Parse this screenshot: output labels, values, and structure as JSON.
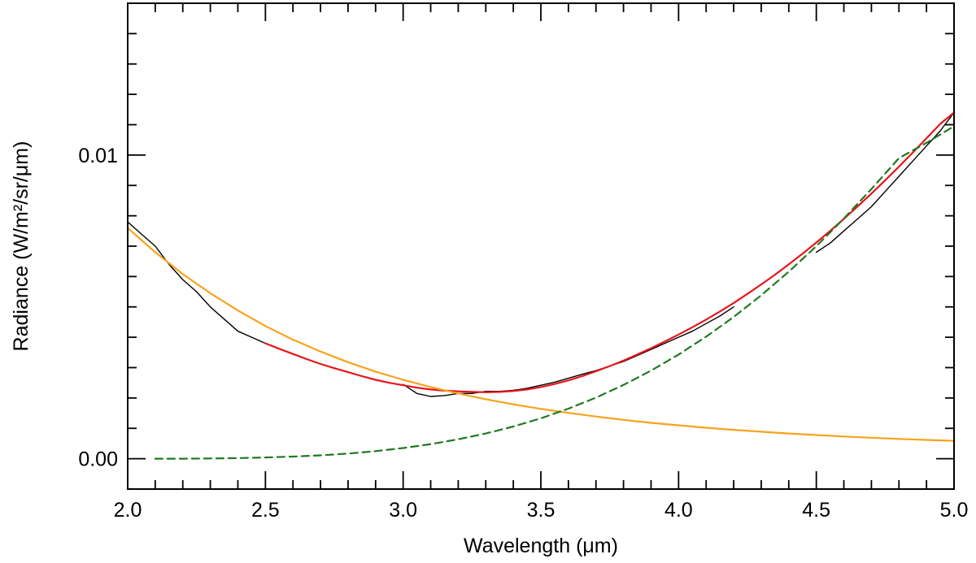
{
  "chart_data": {
    "type": "line",
    "title": "",
    "xlabel": "Wavelength (μm)",
    "ylabel": "Radiance (W/m²/sr/μm)",
    "xlim": [
      2.0,
      5.0
    ],
    "ylim": [
      -0.001,
      0.015
    ],
    "x_ticks": [
      2.0,
      2.5,
      3.0,
      3.5,
      4.0,
      4.5,
      5.0
    ],
    "x_tick_labels": [
      "2.0",
      "2.5",
      "3.0",
      "3.5",
      "4.0",
      "4.5",
      "5.0"
    ],
    "y_ticks": [
      0.0,
      0.01
    ],
    "y_tick_labels": [
      "0.00",
      "0.01"
    ],
    "y_minor_tick_step": 0.001,
    "x_minor_tick_step": 0.1,
    "grid": false,
    "series": [
      {
        "key": "observed",
        "color": "#000000",
        "style": "solid",
        "segments": [
          {
            "x": [
              2.0,
              2.05,
              2.1,
              2.15,
              2.2,
              2.25,
              2.3,
              2.35,
              2.4,
              2.45,
              2.5
            ],
            "y": [
              0.0078,
              0.0074,
              0.007,
              0.0064,
              0.0059,
              0.0055,
              0.005,
              0.0046,
              0.0042,
              0.004,
              0.0038
            ]
          },
          {
            "x": [
              3.0,
              3.05,
              3.1,
              3.15,
              3.2,
              3.25,
              3.3,
              3.35,
              3.4,
              3.45,
              3.5,
              3.55,
              3.6,
              3.65,
              3.7,
              3.75,
              3.8,
              3.85,
              3.9,
              3.95,
              4.0,
              4.05,
              4.1,
              4.15,
              4.2
            ],
            "y": [
              0.00245,
              0.00215,
              0.00205,
              0.00208,
              0.00215,
              0.00215,
              0.00222,
              0.00222,
              0.00225,
              0.00232,
              0.00242,
              0.00252,
              0.00265,
              0.00278,
              0.0029,
              0.00305,
              0.0032,
              0.0034,
              0.0036,
              0.0038,
              0.004,
              0.0042,
              0.00445,
              0.0047,
              0.005
            ]
          },
          {
            "x": [
              4.5,
              4.55,
              4.6,
              4.65,
              4.7,
              4.75,
              4.8,
              4.85,
              4.9,
              4.95,
              5.0
            ],
            "y": [
              0.0068,
              0.0071,
              0.0075,
              0.0079,
              0.0083,
              0.0088,
              0.0093,
              0.0098,
              0.0103,
              0.0108,
              0.0114
            ]
          }
        ]
      },
      {
        "key": "total-model",
        "color": "#e8141b",
        "style": "solid",
        "segments": [
          {
            "x": [
              2.5,
              2.55,
              2.6,
              2.65,
              2.7,
              2.75,
              2.8,
              2.85,
              2.9,
              2.95,
              3.0,
              3.05,
              3.1,
              3.15,
              3.2,
              3.25,
              3.3,
              3.35,
              3.4,
              3.45,
              3.5,
              3.55,
              3.6,
              3.65,
              3.7,
              3.75,
              3.8,
              3.85,
              3.9,
              3.95,
              4.0,
              4.05,
              4.1,
              4.15,
              4.2,
              4.25,
              4.3,
              4.35,
              4.4,
              4.45,
              4.5,
              4.55,
              4.6,
              4.65,
              4.7,
              4.75,
              4.8,
              4.85,
              4.9,
              4.95,
              5.0
            ],
            "y": [
              0.0038,
              0.00362,
              0.00345,
              0.00328,
              0.00312,
              0.00298,
              0.00285,
              0.00272,
              0.0026,
              0.0025,
              0.00242,
              0.00234,
              0.00228,
              0.00224,
              0.00222,
              0.0022,
              0.00219,
              0.0022,
              0.00223,
              0.00228,
              0.00236,
              0.00246,
              0.00258,
              0.00272,
              0.00288,
              0.00305,
              0.00323,
              0.00343,
              0.00364,
              0.00386,
              0.00409,
              0.00433,
              0.00458,
              0.00485,
              0.00513,
              0.00543,
              0.00574,
              0.00606,
              0.0064,
              0.00675,
              0.00712,
              0.0075,
              0.0079,
              0.00831,
              0.00873,
              0.00917,
              0.00962,
              0.01008,
              0.01055,
              0.01103,
              0.0114
            ]
          }
        ]
      },
      {
        "key": "reflected-component",
        "color": "#f7a31c",
        "style": "solid",
        "segments": [
          {
            "x": [
              2.0,
              2.1,
              2.2,
              2.3,
              2.4,
              2.5,
              2.6,
              2.7,
              2.8,
              2.9,
              3.0,
              3.1,
              3.2,
              3.3,
              3.4,
              3.5,
              3.6,
              3.7,
              3.8,
              3.9,
              4.0,
              4.1,
              4.2,
              4.3,
              4.4,
              4.5,
              4.6,
              4.7,
              4.8,
              4.9,
              5.0
            ],
            "y": [
              0.0076,
              0.0068,
              0.00608,
              0.00545,
              0.00488,
              0.00437,
              0.00392,
              0.00353,
              0.00318,
              0.00287,
              0.0026,
              0.00236,
              0.00215,
              0.00196,
              0.00179,
              0.00164,
              0.00151,
              0.00139,
              0.00128,
              0.00118,
              0.0011,
              0.00102,
              0.00095,
              0.00089,
              0.00083,
              0.00078,
              0.00073,
              0.00069,
              0.00065,
              0.00062,
              0.00059
            ]
          }
        ]
      },
      {
        "key": "thermal-component",
        "color": "#1f7a1f",
        "style": "dashed",
        "segments": [
          {
            "x": [
              2.1,
              2.2,
              2.3,
              2.4,
              2.5,
              2.6,
              2.7,
              2.8,
              2.9,
              3.0,
              3.1,
              3.2,
              3.3,
              3.4,
              3.5,
              3.6,
              3.7,
              3.8,
              3.9,
              4.0,
              4.1,
              4.2,
              4.3,
              4.4,
              4.5,
              4.6,
              4.7,
              4.8,
              4.9,
              5.0
            ],
            "y": [
              0.0,
              0.0,
              1e-05,
              2e-05,
              4e-05,
              7e-05,
              0.00011,
              0.00017,
              0.00025,
              0.00035,
              0.00048,
              0.00064,
              0.00083,
              0.00106,
              0.00133,
              0.00165,
              0.00201,
              0.00243,
              0.0029,
              0.00343,
              0.00402,
              0.00467,
              0.00538,
              0.00616,
              0.007,
              0.00791,
              0.00888,
              0.0099,
              0.0104,
              0.01095
            ]
          }
        ]
      }
    ]
  }
}
